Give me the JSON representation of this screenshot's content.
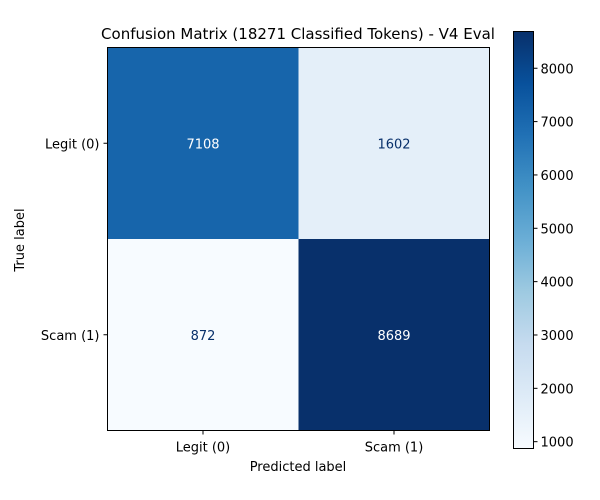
{
  "chart_data": {
    "type": "heatmap",
    "title": "Confusion Matrix (18271 Classified Tokens) - V4 Eval",
    "xlabel": "Predicted label",
    "ylabel": "True label",
    "x_categories": [
      "Legit (0)",
      "Scam (1)"
    ],
    "y_categories": [
      "Legit (0)",
      "Scam (1)"
    ],
    "values": [
      [
        7108,
        1602
      ],
      [
        872,
        8689
      ]
    ],
    "colormap": "Blues",
    "colorbar": {
      "min": 872,
      "max": 8689,
      "ticks": [
        1000,
        2000,
        3000,
        4000,
        5000,
        6000,
        7000,
        8000
      ]
    }
  }
}
